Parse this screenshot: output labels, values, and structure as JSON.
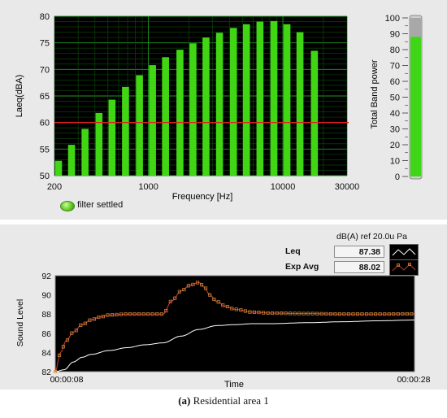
{
  "spectrum": {
    "ylabel": "Laeq(dBA)",
    "xlabel": "Frequency [Hz]",
    "threshold_color": "#e01f1f",
    "bar_color": "#41d614",
    "y_ticks": [
      "80",
      "75",
      "70",
      "65",
      "60",
      "55",
      "50"
    ],
    "x_ticks": [
      "200",
      "1000",
      "10000",
      "30000"
    ]
  },
  "band_meter": {
    "label": "Total Band power",
    "ticks": [
      "100",
      "90",
      "80",
      "70",
      "60",
      "50",
      "40",
      "30",
      "20",
      "10",
      "0"
    ]
  },
  "led": {
    "label": "filter settled"
  },
  "indicators": {
    "ref_label": "dB(A) ref 20.0u Pa",
    "leq_label": "Leq",
    "leq_value": "87.38",
    "expavg_label": "Exp Avg",
    "expavg_value": "88.02"
  },
  "trend": {
    "ylabel": "Sound Level",
    "xlabel": "Time",
    "x_start": "00:00:08",
    "x_end": "00:00:28",
    "y_ticks": [
      "92",
      "90",
      "88",
      "86",
      "84",
      "82"
    ]
  },
  "caption": {
    "prefix": "(a)",
    "text": " Residential area 1"
  },
  "chart_data": [
    {
      "type": "bar",
      "xlabel": "Frequency [Hz]",
      "ylabel": "Laeq(dBA)",
      "xscale": "log",
      "xlim": [
        200,
        30000
      ],
      "ylim": [
        50,
        80
      ],
      "grid": true,
      "threshold": 60,
      "x": [
        200,
        250,
        315,
        400,
        500,
        630,
        800,
        1000,
        1250,
        1600,
        2000,
        2500,
        3150,
        4000,
        5000,
        6300,
        8000,
        10000,
        12500,
        16000
      ],
      "values": [
        52.8,
        55.8,
        58.8,
        61.8,
        64.3,
        66.7,
        68.9,
        70.8,
        72.3,
        73.7,
        74.9,
        76.0,
        76.9,
        77.8,
        78.5,
        79.0,
        79.1,
        78.5,
        77.0,
        73.5
      ]
    },
    {
      "type": "bar",
      "ylabel": "Total Band power",
      "ylim": [
        0,
        100
      ],
      "values": [
        88
      ]
    },
    {
      "type": "line",
      "xlabel": "Time",
      "ylabel": "Sound Level",
      "ylim": [
        82,
        92
      ],
      "x_range": [
        "00:00:08",
        "00:00:28"
      ],
      "series": [
        {
          "name": "Leq",
          "color": "#ffffff",
          "x": [
            0,
            0.5,
            1,
            1.5,
            2,
            3,
            4,
            5,
            6,
            7,
            8,
            9,
            10,
            11,
            12,
            14,
            16,
            18,
            20
          ],
          "values": [
            82,
            82.2,
            83.0,
            83.5,
            83.8,
            84.2,
            84.5,
            84.8,
            85.0,
            85.7,
            86.4,
            86.8,
            86.9,
            87.0,
            87.0,
            87.1,
            87.2,
            87.3,
            87.38
          ]
        },
        {
          "name": "Exp Avg",
          "color": "#c0392b",
          "x": [
            0,
            0.3,
            0.6,
            1,
            1.5,
            2,
            2.5,
            3,
            4,
            5,
            6,
            6.5,
            7,
            7.5,
            8,
            8.3,
            8.6,
            9,
            9.5,
            10,
            11,
            12,
            14,
            16,
            18,
            20
          ],
          "values": [
            82,
            84.0,
            85.2,
            86.1,
            86.9,
            87.4,
            87.7,
            87.9,
            88.0,
            88.0,
            88.0,
            89.4,
            90.4,
            91.0,
            91.3,
            90.8,
            90.0,
            89.3,
            88.8,
            88.5,
            88.2,
            88.1,
            88.05,
            88.0,
            88.0,
            88.02
          ]
        }
      ]
    }
  ]
}
